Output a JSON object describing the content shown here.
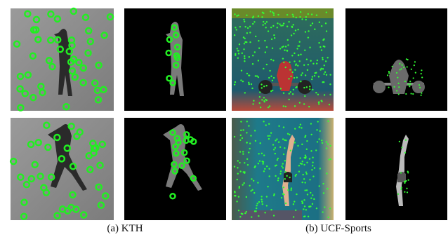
{
  "captions": {
    "a": "(a) KTH",
    "b": "(b) UCF-Sports"
  }
}
